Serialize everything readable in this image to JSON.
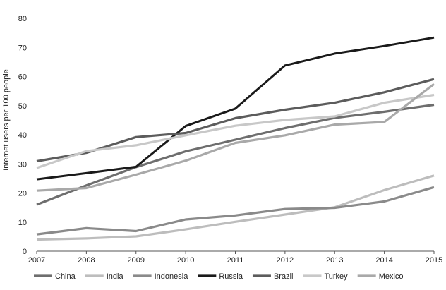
{
  "chart_data": {
    "type": "line",
    "title": "",
    "xlabel": "",
    "ylabel": "Internet users per 100 people",
    "x": [
      2007,
      2008,
      2009,
      2010,
      2011,
      2012,
      2013,
      2014,
      2015
    ],
    "x_tick_labels": [
      "2007",
      "2008",
      "2009",
      "2010",
      "2011",
      "2012",
      "2013",
      "2014",
      "2015"
    ],
    "ylim": [
      0,
      80
    ],
    "y_tick_labels": [
      "0",
      "10",
      "20",
      "30",
      "40",
      "50",
      "60",
      "70",
      "80"
    ],
    "grid": false,
    "legend_position": "bottom",
    "series": [
      {
        "name": "China",
        "color": "#6e6e6e",
        "values": [
          16,
          22.6,
          28.9,
          34.3,
          38.3,
          42.3,
          45.8,
          47.9,
          50.3
        ]
      },
      {
        "name": "India",
        "color": "#bdbdbd",
        "values": [
          4,
          4.4,
          5.1,
          7.5,
          10.1,
          12.6,
          15.1,
          21,
          26
        ]
      },
      {
        "name": "Indonesia",
        "color": "#8a8a8a",
        "values": [
          5.8,
          7.9,
          6.9,
          10.9,
          12.3,
          14.5,
          14.9,
          17.1,
          22
        ]
      },
      {
        "name": "Russia",
        "color": "#1a1a1a",
        "values": [
          24.7,
          26.8,
          29,
          43,
          49,
          63.8,
          67.9,
          70.5,
          73.4
        ]
      },
      {
        "name": "Brazil",
        "color": "#5c5c5c",
        "values": [
          30.9,
          33.8,
          39.2,
          40.6,
          45.7,
          48.6,
          51,
          54.6,
          59.1
        ]
      },
      {
        "name": "Turkey",
        "color": "#c8c8c8",
        "values": [
          28.6,
          34.4,
          36.4,
          39.8,
          43.1,
          45.1,
          46.3,
          51,
          53.7
        ]
      },
      {
        "name": "Mexico",
        "color": "#a9a9a9",
        "values": [
          20.8,
          21.7,
          26.3,
          31.1,
          37.2,
          39.8,
          43.5,
          44.4,
          57.4
        ]
      }
    ]
  }
}
